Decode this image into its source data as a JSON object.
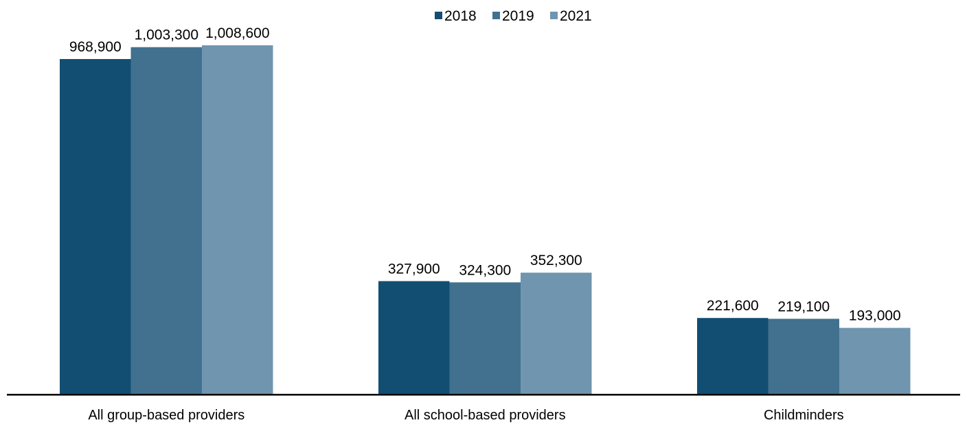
{
  "chart_data": {
    "type": "bar",
    "title": "",
    "xlabel": "",
    "ylabel": "",
    "categories": [
      "All group-based providers",
      "All school-based providers",
      "Childminders"
    ],
    "series": [
      {
        "name": "2018",
        "color": "#124e72",
        "values": [
          968900,
          327900,
          221600
        ],
        "labels": [
          "968,900",
          "327,900",
          "221,600"
        ]
      },
      {
        "name": "2019",
        "color": "#41718f",
        "values": [
          1003300,
          324300,
          219100
        ],
        "labels": [
          "1,003,300",
          "324,300",
          "219,100"
        ]
      },
      {
        "name": "2021",
        "color": "#7095ae",
        "values": [
          1008600,
          352300,
          193000
        ],
        "labels": [
          "1,008,600",
          "352,300",
          "193,000"
        ]
      }
    ],
    "ylim": [
      0,
      1100000
    ],
    "grid": false,
    "legend_position": "top-center",
    "axis_color": "#000000"
  }
}
